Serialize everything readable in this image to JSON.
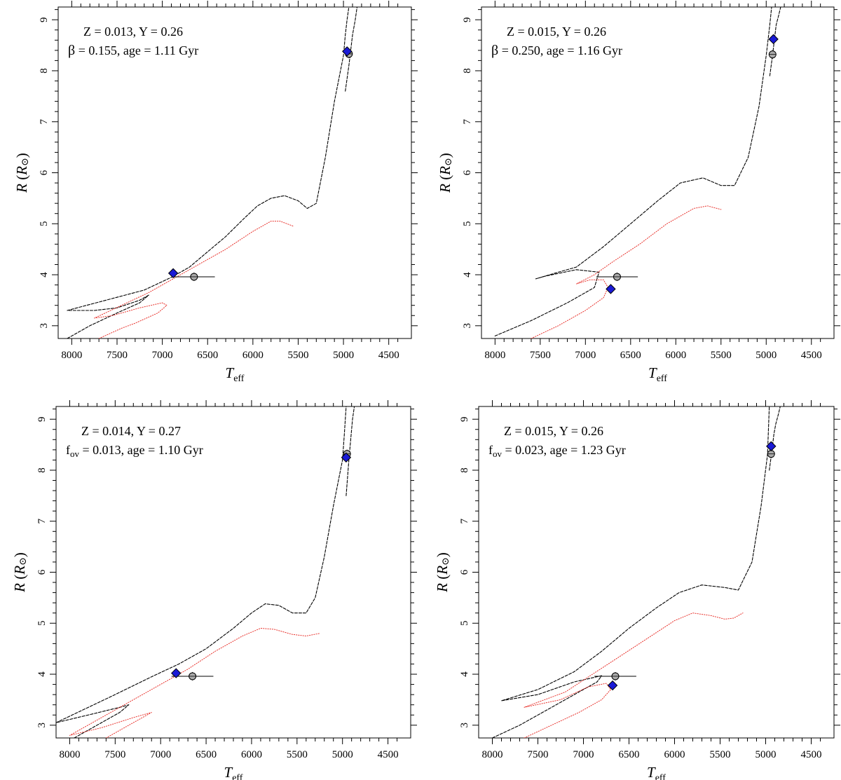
{
  "figure": {
    "description": "Four-panel radius vs effective temperature comparison"
  },
  "colors": {
    "primary_track": "#000000",
    "secondary_track": "#e8302a",
    "model_marker": "#1a1ad6",
    "observed_marker": "#aaaaaa"
  },
  "chart_data": [
    {
      "type": "line",
      "title": "",
      "xlabel": "T",
      "xlabel_sub": "eff",
      "ylabel": "R",
      "ylabel_unit": "R",
      "ylabel_unit_sub": "⊙",
      "xlim": [
        8150,
        4250
      ],
      "ylim": [
        2.75,
        9.25
      ],
      "xticks": [
        8000,
        7500,
        7000,
        6500,
        6000,
        5500,
        5000,
        4500
      ],
      "xtick_labels": [
        "8000",
        "7500",
        "7000",
        "6500",
        "6000",
        "5500",
        "5000",
        "4500"
      ],
      "yticks": [
        3,
        4,
        5,
        6,
        7,
        8,
        9
      ],
      "ytick_labels": [
        "3",
        "4",
        "5",
        "6",
        "7",
        "8",
        "9"
      ],
      "annotation_line1": "Z = 0.013, Y = 0.26",
      "annotation_line2_param": "β",
      "annotation_line2_rest": " = 0.155, age = 1.11 Gyr",
      "series": [
        {
          "name": "primary track",
          "style": "dashed",
          "x": [
            8050,
            7800,
            7500,
            7250,
            7150,
            7250,
            7500,
            7750,
            8050,
            7200,
            6900,
            6700,
            6500,
            6300,
            6100,
            5950,
            5800,
            5650,
            5500,
            5400,
            5300,
            5200,
            5100,
            5000,
            4980,
            4960,
            4940
          ],
          "y": [
            2.75,
            3.0,
            3.25,
            3.45,
            3.6,
            3.5,
            3.35,
            3.3,
            3.3,
            3.7,
            3.95,
            4.15,
            4.45,
            4.75,
            5.1,
            5.35,
            5.5,
            5.55,
            5.45,
            5.3,
            5.4,
            6.3,
            7.4,
            8.3,
            8.7,
            9.0,
            9.25
          ]
        },
        {
          "name": "primary track upper branch",
          "style": "dashed",
          "x": [
            4980,
            4940,
            4920,
            4900,
            4870,
            4850
          ],
          "y": [
            7.6,
            8.1,
            8.4,
            8.7,
            9.0,
            9.25
          ]
        },
        {
          "name": "secondary track",
          "style": "dotted",
          "x": [
            7700,
            7450,
            7300,
            7050,
            6950,
            7000,
            7250,
            7550,
            7750,
            7150,
            6900,
            6600,
            6300,
            6000,
            5800,
            5700,
            5550
          ],
          "y": [
            2.75,
            2.95,
            3.05,
            3.25,
            3.4,
            3.45,
            3.35,
            3.2,
            3.15,
            3.65,
            3.9,
            4.2,
            4.5,
            4.85,
            5.05,
            5.05,
            4.95
          ]
        }
      ],
      "model_points": [
        {
          "x": 6880,
          "y": 4.03
        },
        {
          "x": 4960,
          "y": 8.38
        }
      ],
      "observed_points": [
        {
          "x": 6650,
          "y": 3.96,
          "xerr": 230,
          "yerr": 0.06
        },
        {
          "x": 4940,
          "y": 8.33,
          "xerr": 0,
          "yerr": 0.06
        }
      ]
    },
    {
      "type": "line",
      "title": "",
      "xlabel": "T",
      "xlabel_sub": "eff",
      "ylabel": "R",
      "ylabel_unit": "R",
      "ylabel_unit_sub": "⊙",
      "xlim": [
        8150,
        4250
      ],
      "ylim": [
        2.75,
        9.25
      ],
      "xticks": [
        8000,
        7500,
        7000,
        6500,
        6000,
        5500,
        5000,
        4500
      ],
      "xtick_labels": [
        "8000",
        "7500",
        "7000",
        "6500",
        "6000",
        "5500",
        "5000",
        "4500"
      ],
      "yticks": [
        3,
        4,
        5,
        6,
        7,
        8,
        9
      ],
      "ytick_labels": [
        "3",
        "4",
        "5",
        "6",
        "7",
        "8",
        "9"
      ],
      "annotation_line1": "Z = 0.015, Y = 0.26",
      "annotation_line2_param": "β",
      "annotation_line2_rest": " = 0.250, age = 1.16 Gyr",
      "series": [
        {
          "name": "primary track",
          "style": "dashed",
          "x": [
            8000,
            7600,
            7200,
            6900,
            6850,
            7100,
            7450,
            7550,
            7300,
            7100,
            6800,
            6500,
            6200,
            5950,
            5700,
            5500,
            5350,
            5200,
            5080,
            5000,
            4960,
            4940
          ],
          "y": [
            2.8,
            3.1,
            3.45,
            3.75,
            4.05,
            4.1,
            3.97,
            3.92,
            4.05,
            4.15,
            4.55,
            5.0,
            5.45,
            5.8,
            5.9,
            5.75,
            5.75,
            6.3,
            7.3,
            8.3,
            8.9,
            9.25
          ]
        },
        {
          "name": "primary track upper branch",
          "style": "dashed",
          "x": [
            4960,
            4930,
            4910,
            4890,
            4860,
            4840
          ],
          "y": [
            7.9,
            8.3,
            8.6,
            8.9,
            9.1,
            9.25
          ]
        },
        {
          "name": "secondary track",
          "style": "dotted",
          "x": [
            7600,
            7300,
            7000,
            6800,
            6750,
            6800,
            6950,
            7100,
            6900,
            6700,
            6400,
            6100,
            5800,
            5650,
            5500
          ],
          "y": [
            2.75,
            3.0,
            3.3,
            3.55,
            3.75,
            3.9,
            3.9,
            3.82,
            4.0,
            4.25,
            4.6,
            5.0,
            5.3,
            5.35,
            5.28
          ]
        }
      ],
      "model_points": [
        {
          "x": 6720,
          "y": 3.72
        },
        {
          "x": 4920,
          "y": 8.62
        }
      ],
      "observed_points": [
        {
          "x": 6650,
          "y": 3.96,
          "xerr": 230,
          "yerr": 0.06
        },
        {
          "x": 4930,
          "y": 8.32,
          "xerr": 0,
          "yerr": 0.06
        }
      ]
    },
    {
      "type": "line",
      "title": "",
      "xlabel": "T",
      "xlabel_sub": "eff",
      "ylabel": "R",
      "ylabel_unit": "R",
      "ylabel_unit_sub": "⊙",
      "xlim": [
        8150,
        4250
      ],
      "ylim": [
        2.75,
        9.25
      ],
      "xticks": [
        8000,
        7500,
        7000,
        6500,
        6000,
        5500,
        5000,
        4500
      ],
      "xtick_labels": [
        "8000",
        "7500",
        "7000",
        "6500",
        "6000",
        "5500",
        "5000",
        "4500"
      ],
      "yticks": [
        3,
        4,
        5,
        6,
        7,
        8,
        9
      ],
      "ytick_labels": [
        "3",
        "4",
        "5",
        "6",
        "7",
        "8",
        "9"
      ],
      "annotation_line1": "Z = 0.014, Y = 0.27",
      "annotation_line2_param": "f",
      "annotation_line2_param_sub": "ov",
      "annotation_line2_rest": " = 0.013, age = 1.10 Gyr",
      "series": [
        {
          "name": "primary track",
          "style": "dashed",
          "x": [
            7950,
            7700,
            7450,
            7350,
            7450,
            7750,
            8150,
            7500,
            7100,
            6800,
            6500,
            6200,
            6000,
            5850,
            5700,
            5550,
            5400,
            5300,
            5200,
            5100,
            5000,
            4980,
            4960
          ],
          "y": [
            2.75,
            3.0,
            3.25,
            3.4,
            3.35,
            3.22,
            3.05,
            3.6,
            3.95,
            4.2,
            4.5,
            4.9,
            5.2,
            5.38,
            5.35,
            5.2,
            5.2,
            5.5,
            6.3,
            7.3,
            8.2,
            8.7,
            9.25
          ]
        },
        {
          "name": "primary track upper branch",
          "style": "dashed",
          "x": [
            4960,
            4930,
            4910,
            4890,
            4870
          ],
          "y": [
            7.5,
            8.2,
            8.6,
            9.0,
            9.25
          ]
        },
        {
          "name": "secondary track",
          "style": "dotted",
          "x": [
            7600,
            7350,
            7150,
            7100,
            7300,
            7650,
            8000,
            7300,
            7000,
            6700,
            6400,
            6100,
            5900,
            5750,
            5550,
            5400,
            5250
          ],
          "y": [
            2.75,
            3.0,
            3.2,
            3.25,
            3.15,
            2.95,
            2.8,
            3.5,
            3.8,
            4.1,
            4.45,
            4.75,
            4.9,
            4.88,
            4.78,
            4.75,
            4.8
          ]
        }
      ],
      "model_points": [
        {
          "x": 6830,
          "y": 4.02
        },
        {
          "x": 4960,
          "y": 8.25
        }
      ],
      "observed_points": [
        {
          "x": 6650,
          "y": 3.96,
          "xerr": 230,
          "yerr": 0.06
        },
        {
          "x": 4950,
          "y": 8.32,
          "xerr": 0,
          "yerr": 0.06
        }
      ]
    },
    {
      "type": "line",
      "title": "",
      "xlabel": "T",
      "xlabel_sub": "eff",
      "ylabel": "R",
      "ylabel_unit": "R",
      "ylabel_unit_sub": "⊙",
      "xlim": [
        8150,
        4250
      ],
      "ylim": [
        2.75,
        9.25
      ],
      "xticks": [
        8000,
        7500,
        7000,
        6500,
        6000,
        5500,
        5000,
        4500
      ],
      "xtick_labels": [
        "8000",
        "7500",
        "7000",
        "6500",
        "6000",
        "5500",
        "5000",
        "4500"
      ],
      "yticks": [
        3,
        4,
        5,
        6,
        7,
        8,
        9
      ],
      "ytick_labels": [
        "3",
        "4",
        "5",
        "6",
        "7",
        "8",
        "9"
      ],
      "annotation_line1": "Z = 0.015, Y = 0.26",
      "annotation_line2_param": "f",
      "annotation_line2_param_sub": "ov",
      "annotation_line2_rest": " = 0.023, age = 1.23 Gyr",
      "series": [
        {
          "name": "primary track",
          "style": "dashed",
          "x": [
            8000,
            7700,
            7400,
            7100,
            6850,
            6800,
            7100,
            7500,
            7900,
            7500,
            7100,
            6800,
            6500,
            6200,
            5950,
            5700,
            5450,
            5300,
            5150,
            5050,
            4980,
            4960
          ],
          "y": [
            2.75,
            3.0,
            3.3,
            3.6,
            3.85,
            3.97,
            3.85,
            3.6,
            3.48,
            3.7,
            4.05,
            4.45,
            4.9,
            5.3,
            5.6,
            5.75,
            5.7,
            5.65,
            6.2,
            7.3,
            8.3,
            9.25
          ]
        },
        {
          "name": "primary track upper branch",
          "style": "dashed",
          "x": [
            4960,
            4930,
            4910,
            4890,
            4860,
            4840
          ],
          "y": [
            8.0,
            8.4,
            8.7,
            8.9,
            9.1,
            9.25
          ]
        },
        {
          "name": "secondary track",
          "style": "dotted",
          "x": [
            7650,
            7350,
            7050,
            6800,
            6700,
            6750,
            6950,
            7250,
            7650,
            7200,
            6900,
            6600,
            6300,
            6000,
            5800,
            5600,
            5450,
            5350,
            5250
          ],
          "y": [
            2.75,
            3.0,
            3.25,
            3.5,
            3.7,
            3.82,
            3.75,
            3.5,
            3.35,
            3.65,
            4.0,
            4.35,
            4.7,
            5.05,
            5.2,
            5.15,
            5.08,
            5.1,
            5.2
          ]
        }
      ],
      "model_points": [
        {
          "x": 6680,
          "y": 3.78
        },
        {
          "x": 4940,
          "y": 8.47
        }
      ],
      "observed_points": [
        {
          "x": 6650,
          "y": 3.96,
          "xerr": 230,
          "yerr": 0.06
        },
        {
          "x": 4940,
          "y": 8.32,
          "xerr": 0,
          "yerr": 0.06
        }
      ]
    }
  ]
}
